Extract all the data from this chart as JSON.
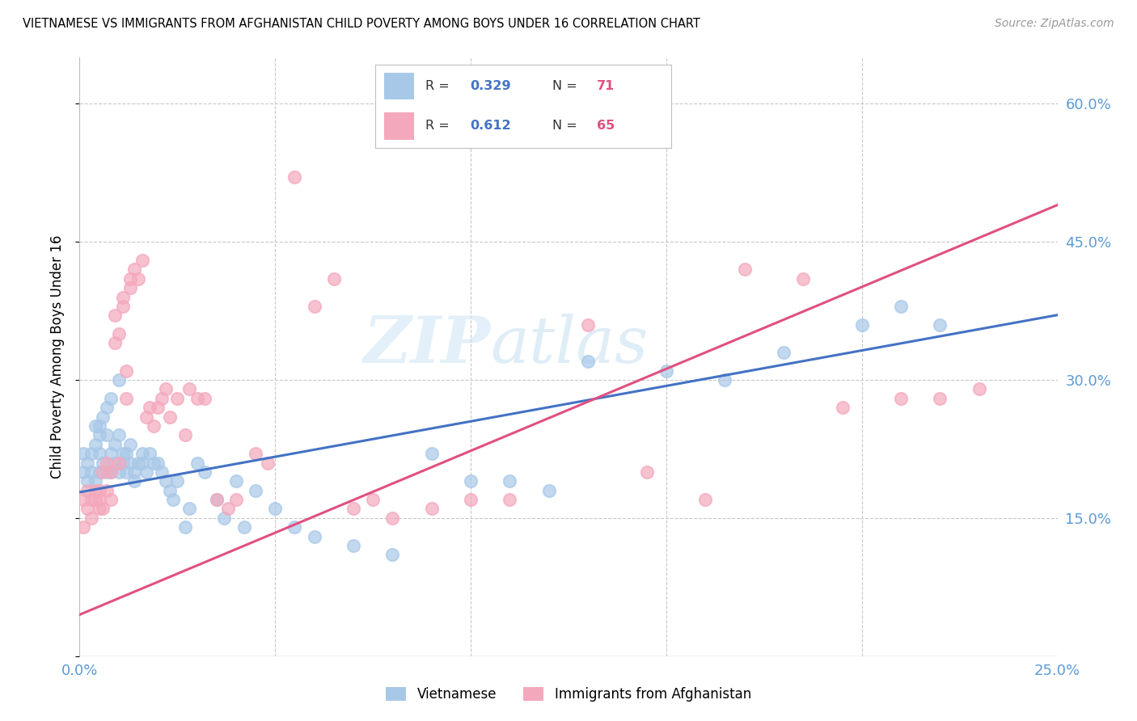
{
  "title": "VIETNAMESE VS IMMIGRANTS FROM AFGHANISTAN CHILD POVERTY AMONG BOYS UNDER 16 CORRELATION CHART",
  "source": "Source: ZipAtlas.com",
  "ylabel": "Child Poverty Among Boys Under 16",
  "xlim": [
    0.0,
    0.25
  ],
  "ylim": [
    0.0,
    0.65
  ],
  "xticks": [
    0.0,
    0.05,
    0.1,
    0.15,
    0.2,
    0.25
  ],
  "yticks": [
    0.0,
    0.15,
    0.3,
    0.45,
    0.6
  ],
  "watermark_line1": "ZIP",
  "watermark_line2": "atlas",
  "color_blue": "#a8c8e8",
  "color_pink": "#f4a8bc",
  "line_blue": "#4472c4",
  "line_pink": "#e05080",
  "blue_intercept": 0.178,
  "blue_slope": 0.77,
  "pink_intercept": 0.045,
  "pink_slope": 1.78,
  "blue_x": [
    0.001,
    0.001,
    0.002,
    0.002,
    0.003,
    0.003,
    0.004,
    0.004,
    0.004,
    0.005,
    0.005,
    0.005,
    0.005,
    0.006,
    0.006,
    0.007,
    0.007,
    0.007,
    0.008,
    0.008,
    0.008,
    0.009,
    0.009,
    0.01,
    0.01,
    0.01,
    0.011,
    0.011,
    0.012,
    0.012,
    0.013,
    0.013,
    0.014,
    0.014,
    0.015,
    0.016,
    0.016,
    0.017,
    0.018,
    0.019,
    0.02,
    0.021,
    0.022,
    0.023,
    0.024,
    0.025,
    0.027,
    0.028,
    0.03,
    0.032,
    0.035,
    0.037,
    0.04,
    0.042,
    0.045,
    0.05,
    0.055,
    0.06,
    0.07,
    0.08,
    0.09,
    0.1,
    0.11,
    0.12,
    0.13,
    0.15,
    0.165,
    0.18,
    0.2,
    0.21,
    0.22
  ],
  "blue_y": [
    0.2,
    0.22,
    0.19,
    0.21,
    0.2,
    0.22,
    0.25,
    0.23,
    0.19,
    0.24,
    0.2,
    0.22,
    0.25,
    0.21,
    0.26,
    0.27,
    0.2,
    0.24,
    0.22,
    0.2,
    0.28,
    0.21,
    0.23,
    0.3,
    0.24,
    0.2,
    0.21,
    0.22,
    0.2,
    0.22,
    0.21,
    0.23,
    0.2,
    0.19,
    0.21,
    0.22,
    0.21,
    0.2,
    0.22,
    0.21,
    0.21,
    0.2,
    0.19,
    0.18,
    0.17,
    0.19,
    0.14,
    0.16,
    0.21,
    0.2,
    0.17,
    0.15,
    0.19,
    0.14,
    0.18,
    0.16,
    0.14,
    0.13,
    0.12,
    0.11,
    0.22,
    0.19,
    0.19,
    0.18,
    0.32,
    0.31,
    0.3,
    0.33,
    0.36,
    0.38,
    0.36
  ],
  "pink_x": [
    0.001,
    0.001,
    0.002,
    0.002,
    0.003,
    0.003,
    0.004,
    0.004,
    0.005,
    0.005,
    0.005,
    0.006,
    0.006,
    0.007,
    0.007,
    0.008,
    0.008,
    0.009,
    0.009,
    0.01,
    0.01,
    0.011,
    0.011,
    0.012,
    0.012,
    0.013,
    0.013,
    0.014,
    0.015,
    0.016,
    0.017,
    0.018,
    0.019,
    0.02,
    0.021,
    0.022,
    0.023,
    0.025,
    0.027,
    0.028,
    0.03,
    0.032,
    0.035,
    0.038,
    0.04,
    0.045,
    0.048,
    0.055,
    0.06,
    0.065,
    0.07,
    0.075,
    0.08,
    0.09,
    0.1,
    0.11,
    0.13,
    0.145,
    0.16,
    0.17,
    0.185,
    0.195,
    0.21,
    0.22,
    0.23
  ],
  "pink_y": [
    0.17,
    0.14,
    0.16,
    0.18,
    0.17,
    0.15,
    0.18,
    0.17,
    0.16,
    0.18,
    0.17,
    0.2,
    0.16,
    0.21,
    0.18,
    0.17,
    0.2,
    0.34,
    0.37,
    0.21,
    0.35,
    0.39,
    0.38,
    0.28,
    0.31,
    0.41,
    0.4,
    0.42,
    0.41,
    0.43,
    0.26,
    0.27,
    0.25,
    0.27,
    0.28,
    0.29,
    0.26,
    0.28,
    0.24,
    0.29,
    0.28,
    0.28,
    0.17,
    0.16,
    0.17,
    0.22,
    0.21,
    0.52,
    0.38,
    0.41,
    0.16,
    0.17,
    0.15,
    0.16,
    0.17,
    0.17,
    0.36,
    0.2,
    0.17,
    0.42,
    0.41,
    0.27,
    0.28,
    0.28,
    0.29
  ]
}
